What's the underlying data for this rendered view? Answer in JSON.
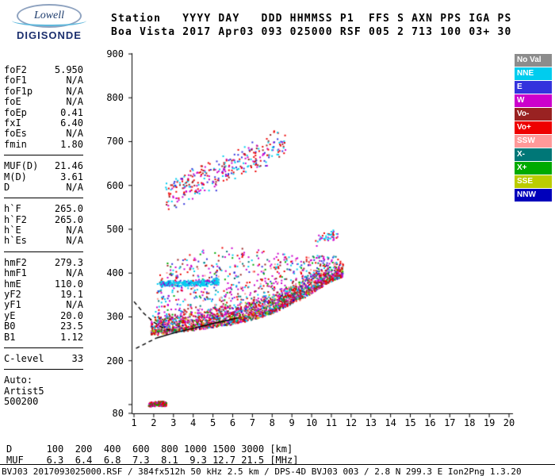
{
  "logo": {
    "line1": "Lowell",
    "line2": "DIGISONDE"
  },
  "header": {
    "line1": "Station   YYYY DAY   DDD HHMMSS P1  FFS S AXN PPS IGA PS",
    "line2": "Boa Vista 2017 Apr03 093 025000 RSF 005 2 713 100 03+ 30"
  },
  "params": {
    "groups": [
      {
        "rows": [
          [
            "foF2",
            "5.950"
          ],
          [
            "foF1",
            "N/A"
          ],
          [
            "foF1p",
            "N/A"
          ],
          [
            "foE",
            "N/A"
          ],
          [
            "foEp",
            "0.41"
          ],
          [
            "fxI",
            "6.40"
          ],
          [
            "foEs",
            "N/A"
          ],
          [
            "fmin",
            "1.80"
          ]
        ]
      },
      {
        "rows": [
          [
            "MUF(D)",
            "21.46"
          ],
          [
            "M(D)",
            "3.61"
          ],
          [
            "D",
            "N/A"
          ]
        ]
      },
      {
        "rows": [
          [
            "h`F",
            "265.0"
          ],
          [
            "h`F2",
            "265.0"
          ],
          [
            "h`E",
            "N/A"
          ],
          [
            "h`Es",
            "N/A"
          ]
        ]
      },
      {
        "rows": [
          [
            "hmF2",
            "279.3"
          ],
          [
            "hmF1",
            "N/A"
          ],
          [
            "hmE",
            "110.0"
          ],
          [
            "yF2",
            "19.1"
          ],
          [
            "yF1",
            "N/A"
          ],
          [
            "yE",
            "20.0"
          ],
          [
            "B0",
            "23.5"
          ],
          [
            "B1",
            "1.12"
          ]
        ]
      },
      {
        "rows": [
          [
            "C-level",
            "33"
          ]
        ]
      }
    ],
    "footer": [
      "Auto:",
      "Artist5",
      "500200"
    ]
  },
  "legend": {
    "items": [
      {
        "label": "No Val",
        "color": "#8C8C8C"
      },
      {
        "label": "NNE",
        "color": "#00CCEE"
      },
      {
        "label": "E",
        "color": "#3333DD"
      },
      {
        "label": "W",
        "color": "#CC00CC"
      },
      {
        "label": "Vo-",
        "color": "#992222"
      },
      {
        "label": "Vo+",
        "color": "#EE0000"
      },
      {
        "label": "SSW",
        "color": "#FF9999"
      },
      {
        "label": "X-",
        "color": "#007777"
      },
      {
        "label": "X+",
        "color": "#00AA00"
      },
      {
        "label": "SSE",
        "color": "#BBCC00"
      },
      {
        "label": "NNW",
        "color": "#0000BB"
      }
    ]
  },
  "chart_data": {
    "type": "scatter",
    "title": "Digisonde ionogram, Boa Vista, 2017 Apr03 093 025000",
    "x_axis": {
      "unit": "[MHz]",
      "min": 1,
      "max": 20,
      "ticks": [
        1,
        2,
        3,
        4,
        5,
        6,
        7,
        8,
        9,
        10,
        11,
        12,
        13,
        14,
        15,
        16,
        17,
        18,
        19,
        20
      ]
    },
    "y_axis": {
      "unit": "[km]",
      "min": 80,
      "max": 900,
      "tick_labels": [
        900,
        800,
        700,
        600,
        500,
        400,
        300,
        200,
        80
      ],
      "unlabeled_ticks": [
        100
      ]
    },
    "clusters": [
      {
        "name": "F-trace-main",
        "count": 2000,
        "f_range": [
          1.85,
          11.6
        ],
        "base": [
          [
            1.85,
            266
          ],
          [
            3,
            272
          ],
          [
            4,
            278
          ],
          [
            5,
            285
          ],
          [
            6,
            292
          ],
          [
            7,
            302
          ],
          [
            8,
            316
          ],
          [
            9,
            338
          ],
          [
            10,
            362
          ],
          [
            10.8,
            385
          ],
          [
            11.6,
            400
          ]
        ],
        "spread_down": 10,
        "spread_up": 38,
        "bias": 2.2,
        "size": 2,
        "colors": {
          "#EE0000": 20,
          "#992222": 16,
          "#CC00CC": 15,
          "#FF9999": 8,
          "#00CCEE": 10,
          "#00AA00": 8,
          "#007777": 6,
          "#BBCC00": 6,
          "#3333DD": 4,
          "#0000BB": 3,
          "#8C8C8C": 4
        }
      },
      {
        "name": "spread-F",
        "count": 900,
        "f_range": [
          2.1,
          11.4
        ],
        "base": [
          [
            2.1,
            280
          ],
          [
            3,
            285
          ],
          [
            5,
            295
          ],
          [
            7,
            310
          ],
          [
            9,
            345
          ],
          [
            11.4,
            400
          ]
        ],
        "spread_down": 0,
        "spread_up": [
          [
            2.1,
            120
          ],
          [
            3,
            150
          ],
          [
            5,
            165
          ],
          [
            7,
            145
          ],
          [
            9,
            95
          ],
          [
            10.5,
            60
          ],
          [
            11.4,
            40
          ]
        ],
        "bias": 1.6,
        "size": 2,
        "colors": {
          "#CC00CC": 24,
          "#EE0000": 18,
          "#00CCEE": 16,
          "#992222": 12,
          "#3333DD": 10,
          "#FF9999": 8,
          "#007777": 6,
          "#00AA00": 6
        }
      },
      {
        "name": "cyan-band",
        "count": 280,
        "f_range": [
          2.3,
          5.3
        ],
        "base": [
          [
            2.3,
            372
          ],
          [
            5.3,
            378
          ]
        ],
        "spread_down": 6,
        "spread_up": 10,
        "bias": 1,
        "size": 2,
        "colors": {
          "#00CCEE": 80,
          "#3333DD": 10,
          "#CC00CC": 10
        }
      },
      {
        "name": "second-hop-spread",
        "count": 330,
        "f_range": [
          2.6,
          8.7
        ],
        "base": [
          [
            2.6,
            560
          ],
          [
            4,
            592
          ],
          [
            6,
            625
          ],
          [
            8.7,
            685
          ]
        ],
        "spread_down": 25,
        "spread_up": 55,
        "bias": 1,
        "size": 2,
        "colors": {
          "#CC00CC": 28,
          "#EE0000": 24,
          "#00CCEE": 20,
          "#3333DD": 16,
          "#992222": 12
        }
      },
      {
        "name": "Es-layer",
        "count": 150,
        "f_range": [
          1.75,
          2.65
        ],
        "base": [
          [
            1.75,
            99
          ],
          [
            2.65,
            101
          ]
        ],
        "spread_down": 6,
        "spread_up": 8,
        "bias": 1,
        "size": 2,
        "colors": {
          "#EE0000": 35,
          "#00AA00": 25,
          "#992222": 20,
          "#CC00CC": 20
        }
      },
      {
        "name": "high-dots",
        "count": 45,
        "f_range": [
          10.2,
          11.35
        ],
        "base": [
          [
            10.2,
            468
          ],
          [
            11.35,
            488
          ]
        ],
        "spread_down": 12,
        "spread_up": 18,
        "bias": 1,
        "size": 2,
        "colors": {
          "#00CCEE": 50,
          "#EE0000": 30,
          "#CC00CC": 20
        }
      }
    ],
    "profile_lines": [
      {
        "style": "dashed",
        "points": [
          [
            1.0,
            335
          ],
          [
            1.5,
            308
          ],
          [
            2.0,
            288
          ],
          [
            2.5,
            274
          ],
          [
            2.9,
            268
          ]
        ]
      },
      {
        "style": "dashed",
        "points": [
          [
            1.1,
            228
          ],
          [
            1.7,
            242
          ],
          [
            2.15,
            252
          ]
        ]
      },
      {
        "style": "solid",
        "points": [
          [
            2.15,
            252
          ],
          [
            3,
            263
          ],
          [
            4,
            274
          ],
          [
            5,
            285
          ],
          [
            6.3,
            298
          ]
        ]
      }
    ]
  },
  "dmuf": {
    "line1": "D      100  200  400  600  800 1000 1500 3000 [km]",
    "line2": "MUF    6.3  6.4  6.8  7.3  8.1  9.3 12.7 21.5 [MHz]"
  },
  "status": "BVJ03_2017093025000.RSF / 384fx512h 50 kHz 2.5 km / DPS-4D BVJ03 003 / 2.8 N 299.3 E Ion2Png 1.3.20"
}
